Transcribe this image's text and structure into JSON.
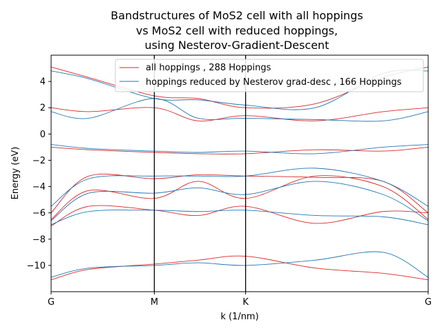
{
  "chart_data": {
    "type": "line",
    "title": [
      "Bandstructures of MoS2 cell with all hoppings",
      "vs MoS2 cell with reduced hoppings,",
      "using Nesterov-Gradient-Descent"
    ],
    "xlabel": "k (1/nm)",
    "ylabel": "Energy (eV)",
    "xlim": [
      0,
      1
    ],
    "ylim": [
      -12,
      6
    ],
    "yticks": [
      -10,
      -8,
      -6,
      -4,
      -2,
      0,
      2,
      4
    ],
    "xticks": [
      {
        "label": "G",
        "pos": 0.0
      },
      {
        "label": "M",
        "pos": 0.2737
      },
      {
        "label": "K",
        "pos": 0.5158
      },
      {
        "label": "G",
        "pos": 1.0
      }
    ],
    "legend_position": "top-right",
    "x": [
      0.0,
      0.1,
      0.2737,
      0.39,
      0.5158,
      0.7,
      0.88,
      1.0
    ],
    "series": [
      {
        "name": "all hoppings , 288 Hoppings",
        "color": "#d62728",
        "bands": [
          [
            5.1,
            4.3,
            2.9,
            2.7,
            2.0,
            2.3,
            4.3,
            5.1
          ],
          [
            2.0,
            1.7,
            2.0,
            1.0,
            1.4,
            1.0,
            1.7,
            2.0
          ],
          [
            -1.0,
            -1.2,
            -1.4,
            -1.5,
            -1.5,
            -1.2,
            -1.3,
            -1.0
          ],
          [
            -6.0,
            -3.2,
            -3.4,
            -3.1,
            -3.2,
            -3.3,
            -3.6,
            -6.0
          ],
          [
            -6.5,
            -4.3,
            -4.9,
            -3.6,
            -4.9,
            -3.2,
            -4.0,
            -6.5
          ],
          [
            -7.0,
            -5.5,
            -5.8,
            -6.2,
            -5.5,
            -6.8,
            -5.9,
            -6.0
          ],
          [
            -11.1,
            -10.3,
            -9.9,
            -9.6,
            -9.3,
            -10.2,
            -10.6,
            -11.1
          ]
        ]
      },
      {
        "name": "hoppings reduced by Nesterov grad-desc , 166 Hoppings",
        "color": "#1f77b4",
        "bands": [
          [
            4.8,
            4.2,
            2.7,
            2.6,
            2.2,
            2.0,
            4.6,
            4.8
          ],
          [
            1.7,
            1.2,
            2.7,
            1.2,
            1.2,
            1.1,
            1.0,
            1.7
          ],
          [
            -0.8,
            -1.1,
            -1.3,
            -1.4,
            -1.3,
            -1.5,
            -1.0,
            -0.8
          ],
          [
            -5.5,
            -3.4,
            -3.2,
            -3.2,
            -3.2,
            -2.6,
            -3.6,
            -5.5
          ],
          [
            -6.6,
            -4.5,
            -4.5,
            -4.1,
            -4.6,
            -3.6,
            -4.6,
            -6.6
          ],
          [
            -6.9,
            -5.9,
            -5.8,
            -5.9,
            -5.8,
            -6.2,
            -6.3,
            -6.9
          ],
          [
            -10.9,
            -10.2,
            -10.0,
            -9.8,
            -10.0,
            -9.6,
            -9.0,
            -10.9
          ]
        ]
      }
    ]
  }
}
